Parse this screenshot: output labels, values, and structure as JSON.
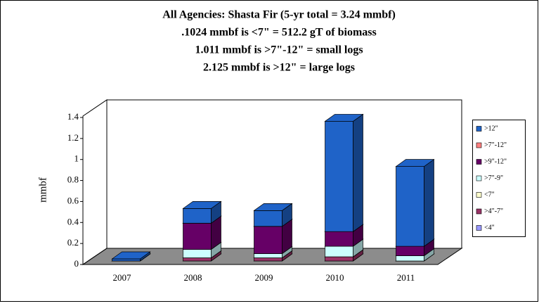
{
  "chart_data": {
    "type": "bar3d_stacked",
    "title": [
      "All Agencies: Shasta Fir (5-yr total = 3.24 mmbf)",
      ".1024 mmbf is <7\" = 512.2 gT of biomass",
      "1.011 mmbf is >7\"-12\" = small logs",
      "2.125 mmbf is >12\" = large logs"
    ],
    "y_label": "mmbf",
    "categories": [
      "2007",
      "2008",
      "2009",
      "2010",
      "2011"
    ],
    "series": [
      {
        "name": ">12\"",
        "color": "#1f63c8",
        "values": [
          0.02,
          0.14,
          0.15,
          1.05,
          0.76
        ]
      },
      {
        "name": ">7\"-12\"",
        "color": "#ff8080",
        "values": [
          0,
          0,
          0,
          0,
          0
        ]
      },
      {
        "name": ">9\"-12\"",
        "color": "#660066",
        "values": [
          0,
          0.25,
          0.26,
          0.14,
          0.09
        ]
      },
      {
        "name": ">7\"-9\"",
        "color": "#ccffff",
        "values": [
          0,
          0.08,
          0.04,
          0.1,
          0.05
        ]
      },
      {
        "name": "<7\"",
        "color": "#ffffcc",
        "values": [
          0,
          0,
          0,
          0,
          0
        ]
      },
      {
        "name": ">4\"-7\"",
        "color": "#993366",
        "values": [
          0,
          0.03,
          0.03,
          0.04,
          0
        ]
      },
      {
        "name": "<4\"",
        "color": "#9999ff",
        "values": [
          0,
          0,
          0,
          0,
          0
        ]
      }
    ],
    "ylim": [
      0,
      1.4
    ],
    "yticks": [
      0,
      0.2,
      0.4,
      0.6,
      0.8,
      1,
      1.2,
      1.4
    ],
    "legend": "right"
  }
}
